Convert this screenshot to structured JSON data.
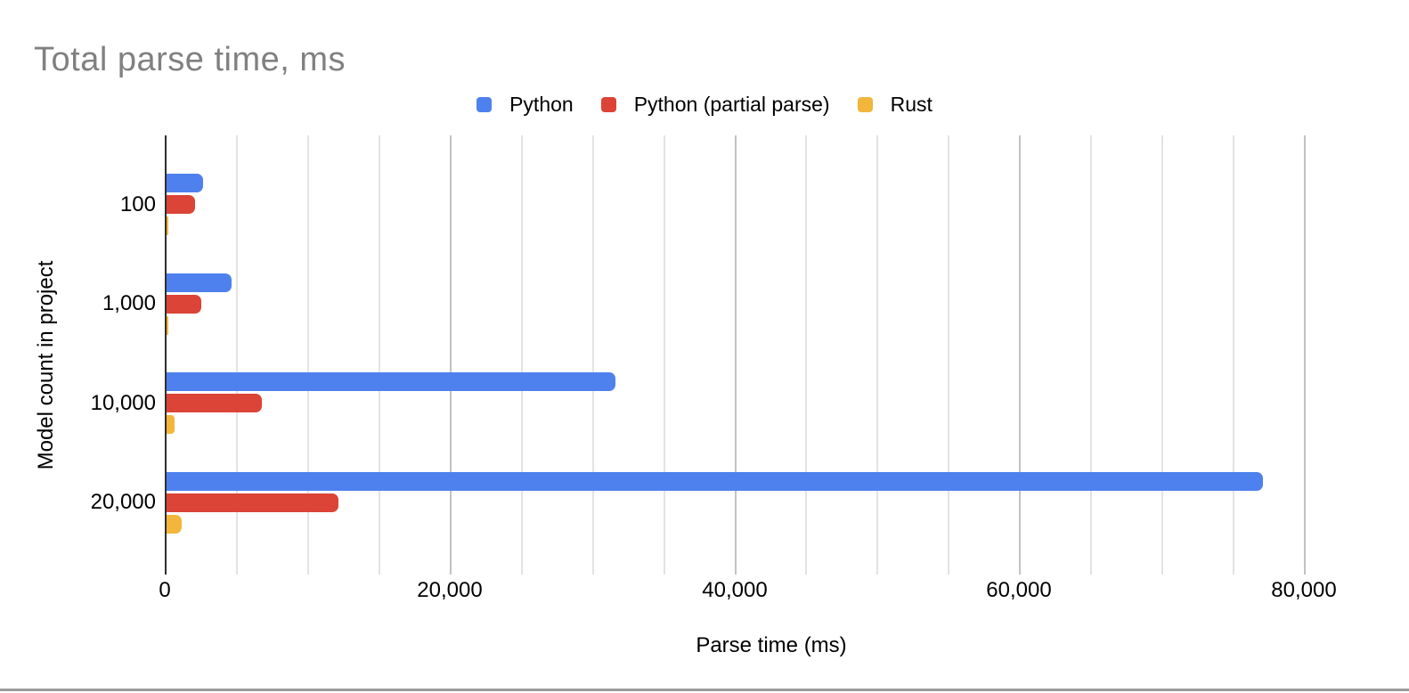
{
  "chart_data": {
    "type": "bar",
    "orientation": "horizontal",
    "title": "Total parse time, ms",
    "xlabel": "Parse time (ms)",
    "ylabel": "Model count in project",
    "categories": [
      "100",
      "1,000",
      "10,000",
      "20,000"
    ],
    "series": [
      {
        "name": "Python",
        "color": "#4e81ee",
        "values": [
          2550,
          4580,
          31500,
          77000
        ]
      },
      {
        "name": "Python (partial parse)",
        "color": "#db4437",
        "values": [
          2000,
          2440,
          6700,
          12100
        ]
      },
      {
        "name": "Rust",
        "color": "#f2b63c",
        "values": [
          90,
          110,
          540,
          1080
        ]
      }
    ],
    "x_axis": {
      "min": 0,
      "max": 80000,
      "minor_step": 5000,
      "ticks": [
        {
          "value": 0,
          "label": "0"
        },
        {
          "value": 20000,
          "label": "20,000"
        },
        {
          "value": 40000,
          "label": "40,000"
        },
        {
          "value": 60000,
          "label": "60,000"
        },
        {
          "value": 80000,
          "label": "80,000"
        }
      ]
    },
    "legend_position": "top",
    "grid": true
  },
  "colors": {
    "title_text": "#808080",
    "axis_line": "#2e2e2e",
    "major_gridline": "#c2c2c2",
    "minor_gridline": "#e3e3e3",
    "tick_text": "#000000",
    "divider": "#9b9b9b"
  }
}
